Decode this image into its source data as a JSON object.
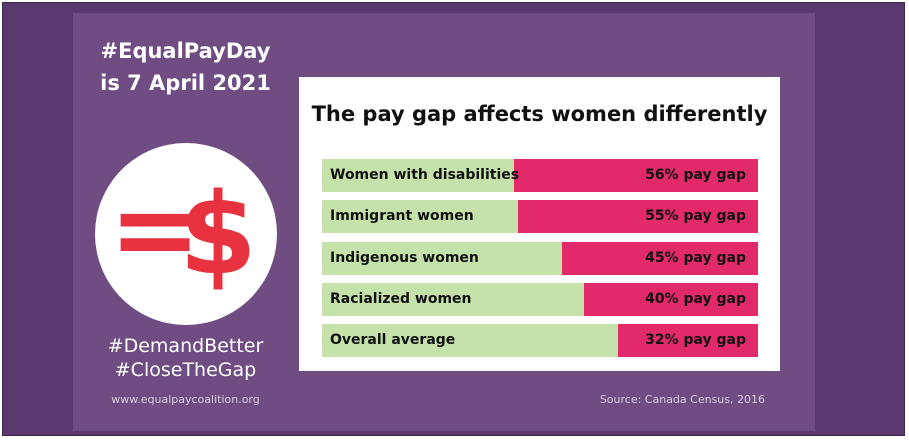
{
  "branding": {
    "headline_line1": "#EqualPayDay",
    "headline_line2": "is 7 April 2021",
    "logo_equals": "=",
    "logo_dollar": "$",
    "hashtag1": "#DemandBetter",
    "hashtag2": "#CloseTheGap",
    "website": "www.equalpaycoalition.org"
  },
  "colors": {
    "background": "#5a3a6e",
    "panel": "#6f4c82",
    "green": "#c4e2a9",
    "pink": "#e22a6a",
    "logo_red": "#e8323f"
  },
  "chart_data": {
    "type": "bar",
    "orientation": "horizontal",
    "stacked": true,
    "title": "The pay gap affects women differently",
    "categories": [
      "Women with disabilities",
      "Immigrant women",
      "Indigenous women",
      "Racialized women",
      "Overall average"
    ],
    "values": [
      56,
      55,
      45,
      40,
      32
    ],
    "value_labels": [
      "56% pay gap",
      "55% pay gap",
      "45% pay gap",
      "40% pay gap",
      "32% pay gap"
    ],
    "unit": "%",
    "xlim": [
      0,
      100
    ],
    "source": "Source: Canada Census, 2016"
  }
}
